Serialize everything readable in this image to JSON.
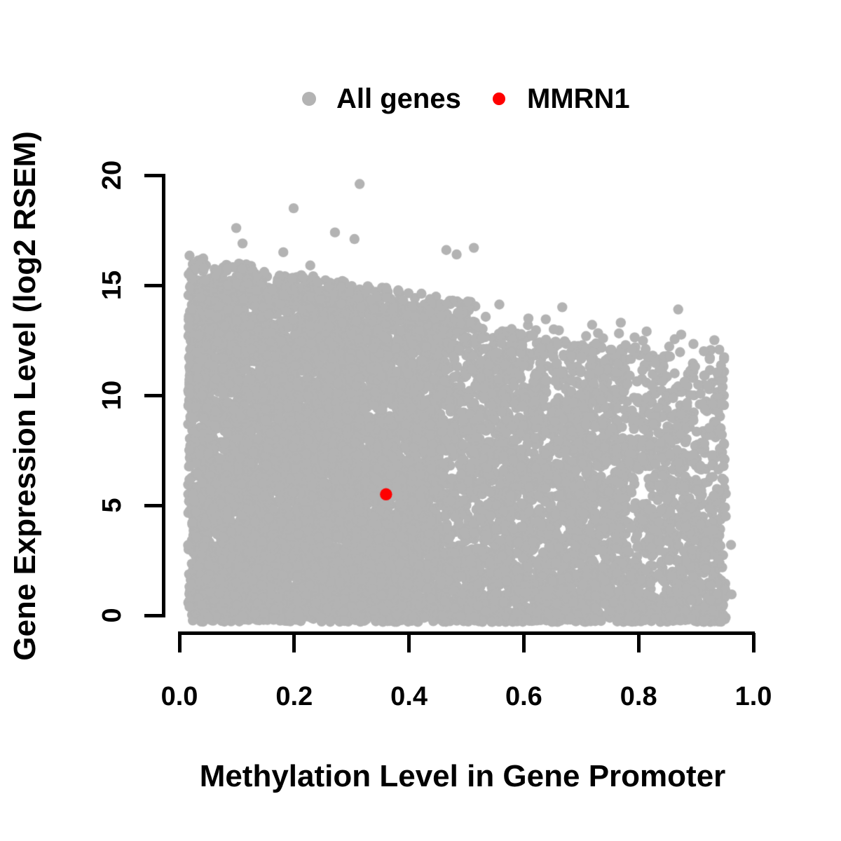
{
  "figure": {
    "background": "#ffffff",
    "text_color": "#000000"
  },
  "chart_data": {
    "type": "scatter",
    "title": "",
    "xlabel": "Methylation Level in Gene Promoter",
    "ylabel": "Gene Expression Level (log2 RSEM)",
    "xlim": [
      0.0,
      1.0
    ],
    "ylim": [
      0,
      20
    ],
    "xticks": [
      "0.0",
      "0.2",
      "0.4",
      "0.6",
      "0.8",
      "1.0"
    ],
    "yticks": [
      "0",
      "5",
      "10",
      "15",
      "20"
    ],
    "grid": false,
    "legend_position": "top-center",
    "legend": [
      {
        "label": "All genes",
        "color": "#b3b3b3"
      },
      {
        "label": "MMRN1",
        "color": "#ff0000"
      }
    ],
    "highlight_point": {
      "label": "MMRN1",
      "x": 0.36,
      "y": 5.5,
      "color": "#ff0000",
      "radius_px": 8.7
    },
    "all_genes_cloud": {
      "color": "#b3b3b3",
      "point_radius_px": 7.2,
      "marker": "circle",
      "seed": 42,
      "x_range": [
        0.015,
        0.952
      ],
      "y_floor": -0.3,
      "upper_envelope": {
        "intercept": 15.35,
        "slope": -4.3
      },
      "regions": [
        {
          "name": "dense-left",
          "n": 6500,
          "x": [
            0.015,
            0.455
          ],
          "y_pow": 1.05
        },
        {
          "name": "mid",
          "n": 2700,
          "x": [
            0.455,
            0.78
          ],
          "y_pow": 1.3
        },
        {
          "name": "sparse-right",
          "n": 950,
          "x": [
            0.78,
            0.952
          ],
          "y_pow": 1.45
        }
      ],
      "top_band": {
        "n": 460,
        "x": [
          0.015,
          0.52
        ],
        "height": 1.1,
        "pow": 2.2
      },
      "sparse_top": {
        "n": 45,
        "x": [
          0.5,
          0.95
        ],
        "height": 1.2,
        "pow": 2.0
      },
      "outliers": [
        [
          0.314,
          19.6
        ],
        [
          0.199,
          18.5
        ],
        [
          0.271,
          17.4
        ],
        [
          0.305,
          17.1
        ],
        [
          0.099,
          17.6
        ],
        [
          0.11,
          16.9
        ],
        [
          0.465,
          16.6
        ],
        [
          0.513,
          16.7
        ],
        [
          0.483,
          16.4
        ],
        [
          0.181,
          16.5
        ],
        [
          0.228,
          15.9
        ],
        [
          0.667,
          14.0
        ],
        [
          0.869,
          13.9
        ],
        [
          0.719,
          13.2
        ],
        [
          0.769,
          13.3
        ],
        [
          0.814,
          12.9
        ],
        [
          0.962,
          0.95
        ],
        [
          0.961,
          3.2
        ]
      ]
    }
  }
}
